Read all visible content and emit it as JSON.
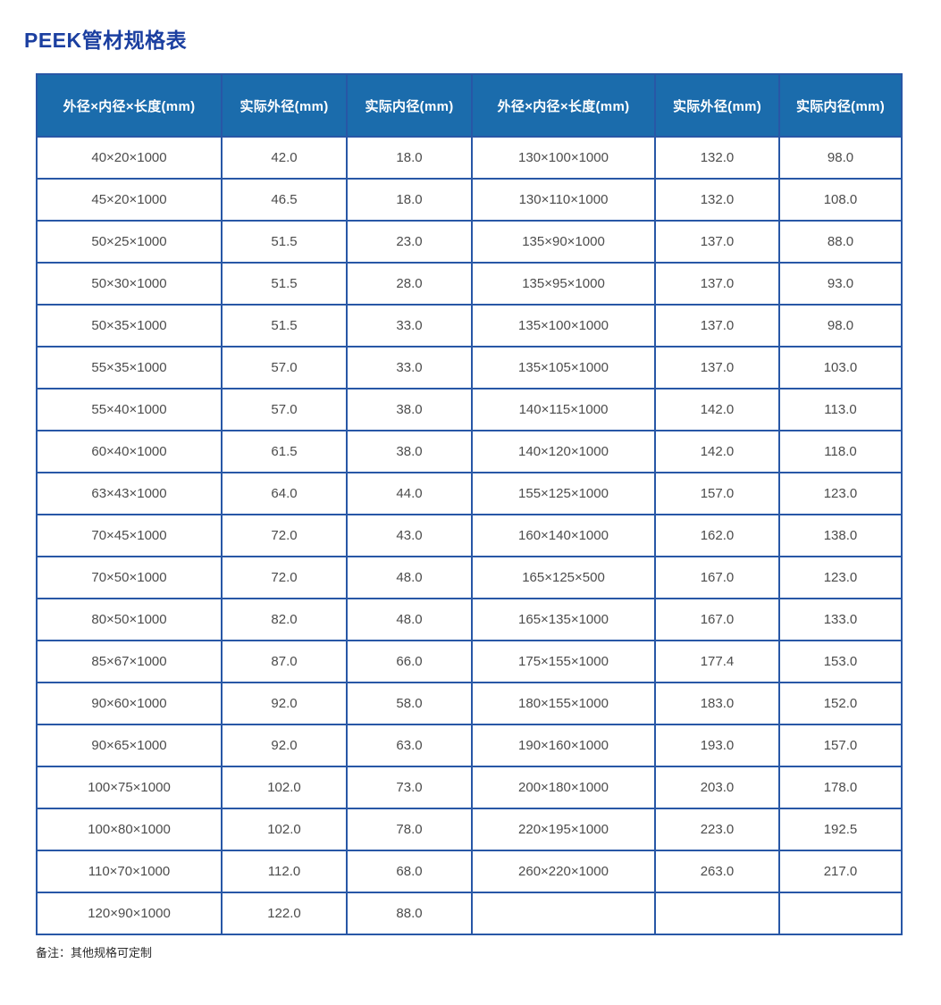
{
  "page": {
    "title": "PEEK管材规格表",
    "note": "备注：其他规格可定制"
  },
  "colors": {
    "title_text": "#1b3fa0",
    "header_background": "#1b6cac",
    "header_text": "#ffffff",
    "table_border": "#2857a6",
    "cell_text": "#4c4c4c"
  },
  "table": {
    "headers": [
      "外径×内径×长度(mm)",
      "实际外径(mm)",
      "实际内径(mm)",
      "外径×内径×长度(mm)",
      "实际外径(mm)",
      "实际内径(mm)"
    ],
    "rows": [
      [
        "40×20×1000",
        "42.0",
        "18.0",
        "130×100×1000",
        "132.0",
        "98.0"
      ],
      [
        "45×20×1000",
        "46.5",
        "18.0",
        "130×110×1000",
        "132.0",
        "108.0"
      ],
      [
        "50×25×1000",
        "51.5",
        "23.0",
        "135×90×1000",
        "137.0",
        "88.0"
      ],
      [
        "50×30×1000",
        "51.5",
        "28.0",
        "135×95×1000",
        "137.0",
        "93.0"
      ],
      [
        "50×35×1000",
        "51.5",
        "33.0",
        "135×100×1000",
        "137.0",
        "98.0"
      ],
      [
        "55×35×1000",
        "57.0",
        "33.0",
        "135×105×1000",
        "137.0",
        "103.0"
      ],
      [
        "55×40×1000",
        "57.0",
        "38.0",
        "140×115×1000",
        "142.0",
        "113.0"
      ],
      [
        "60×40×1000",
        "61.5",
        "38.0",
        "140×120×1000",
        "142.0",
        "118.0"
      ],
      [
        "63×43×1000",
        "64.0",
        "44.0",
        "155×125×1000",
        "157.0",
        "123.0"
      ],
      [
        "70×45×1000",
        "72.0",
        "43.0",
        "160×140×1000",
        "162.0",
        "138.0"
      ],
      [
        "70×50×1000",
        "72.0",
        "48.0",
        "165×125×500",
        "167.0",
        "123.0"
      ],
      [
        "80×50×1000",
        "82.0",
        "48.0",
        "165×135×1000",
        "167.0",
        "133.0"
      ],
      [
        "85×67×1000",
        "87.0",
        "66.0",
        "175×155×1000",
        "177.4",
        "153.0"
      ],
      [
        "90×60×1000",
        "92.0",
        "58.0",
        "180×155×1000",
        "183.0",
        "152.0"
      ],
      [
        "90×65×1000",
        "92.0",
        "63.0",
        "190×160×1000",
        "193.0",
        "157.0"
      ],
      [
        "100×75×1000",
        "102.0",
        "73.0",
        "200×180×1000",
        "203.0",
        "178.0"
      ],
      [
        "100×80×1000",
        "102.0",
        "78.0",
        "220×195×1000",
        "223.0",
        "192.5"
      ],
      [
        "110×70×1000",
        "112.0",
        "68.0",
        "260×220×1000",
        "263.0",
        "217.0"
      ],
      [
        "120×90×1000",
        "122.0",
        "88.0",
        "",
        "",
        ""
      ]
    ]
  }
}
